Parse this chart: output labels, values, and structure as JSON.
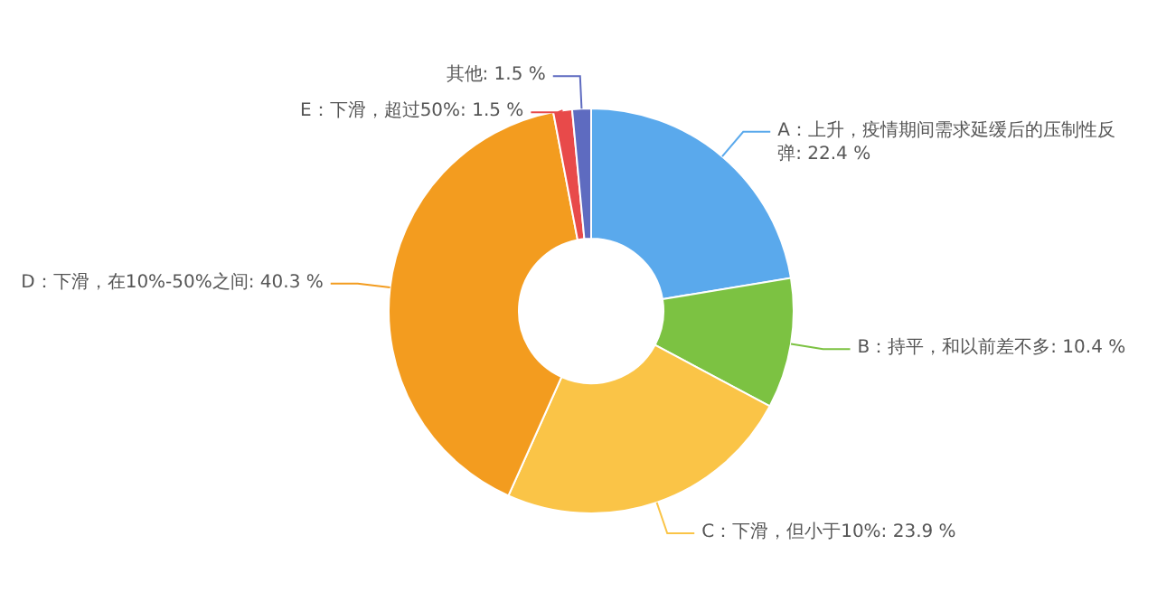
{
  "chart_data": {
    "type": "donut",
    "categories": [
      "A：上升，疫情期间需求延缓后的压制性反弹",
      "B：持平，和以前差不多",
      "C：下滑，但小于10%",
      "D：下滑，在10%-50%之间",
      "E：下滑，超过50%",
      "其他"
    ],
    "values": [
      22.4,
      10.4,
      23.9,
      40.3,
      1.5,
      1.5
    ],
    "value_labels": [
      "22.4 %",
      "10.4 %",
      "23.9 %",
      "40.3 %",
      "1.5 %",
      "1.5 %"
    ],
    "colors": [
      "#5aa9ec",
      "#7cc242",
      "#fac447",
      "#f39c1f",
      "#e84a4a",
      "#5e6bc0"
    ],
    "legend": false
  }
}
